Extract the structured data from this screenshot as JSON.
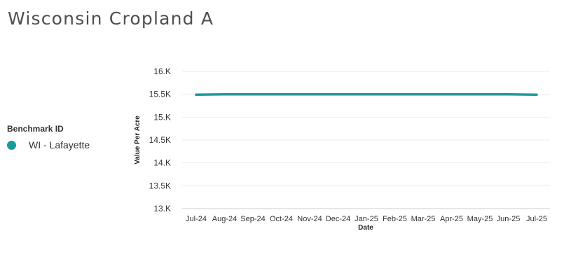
{
  "page": {
    "title": "Wisconsin Cropland A"
  },
  "legend": {
    "title": "Benchmark ID",
    "items": [
      {
        "label": "WI - Lafayette",
        "color": "#1a9a9c"
      }
    ]
  },
  "chart_data": {
    "type": "line",
    "xlabel": "Date",
    "ylabel": "Value Per Acre",
    "categories": [
      "Jul-24",
      "Aug-24",
      "Sep-24",
      "Oct-24",
      "Nov-24",
      "Dec-24",
      "Jan-25",
      "Feb-25",
      "Mar-25",
      "Apr-25",
      "May-25",
      "Jun-25",
      "Jul-25"
    ],
    "yticks": [
      "13.K",
      "13.5K",
      "14.K",
      "14.5K",
      "15.K",
      "15.5K",
      "16.K"
    ],
    "ylim": [
      13000,
      16000
    ],
    "grid": true,
    "legend_position": "left",
    "series": [
      {
        "name": "WI - Lafayette",
        "color": "#1a9a9c",
        "values": [
          15490,
          15500,
          15500,
          15500,
          15500,
          15500,
          15500,
          15500,
          15500,
          15500,
          15500,
          15500,
          15490
        ]
      }
    ]
  }
}
